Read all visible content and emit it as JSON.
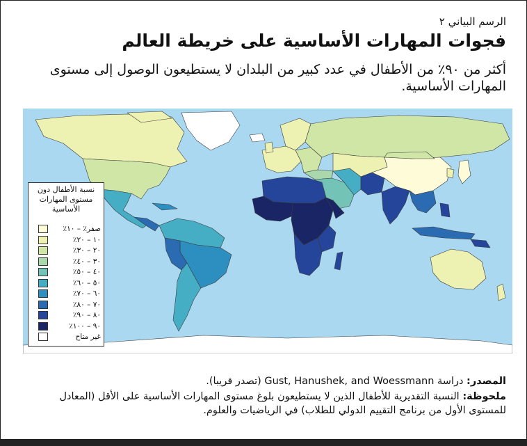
{
  "figure_label": "الرسم البياني ٢",
  "title": "فجوات المهارات الأساسية على خريطة العالم",
  "subtitle": "أكثر من ٩٠٪ من الأطفال في عدد كبير من البلدان لا يستطيعون الوصول إلى مستوى المهارات الأساسية.",
  "legend": {
    "title": "نسبة الأطفال دون مستوى المهارات الأساسية",
    "items": [
      {
        "label": "صفر٪ – ١٠٪",
        "color": "#fefbd9"
      },
      {
        "label": "١٠ – ٢٠٪",
        "color": "#edf2b3"
      },
      {
        "label": "٢٠ – ٣٠٪",
        "color": "#cfe6a6"
      },
      {
        "label": "٣٠ – ٤٠٪",
        "color": "#a9d8ad"
      },
      {
        "label": "٤٠ – ٥٠٪",
        "color": "#73c3b7"
      },
      {
        "label": "٥٠ – ٦٠٪",
        "color": "#45aec4"
      },
      {
        "label": "٦٠ – ٧٠٪",
        "color": "#2d8fc0"
      },
      {
        "label": "٧٠ – ٨٠٪",
        "color": "#2a6bb1"
      },
      {
        "label": "٨٠ – ٩٠٪",
        "color": "#24459a"
      },
      {
        "label": "٩٠ – ١٠٠٪",
        "color": "#1a2566"
      },
      {
        "label": "غير متاح",
        "color": "#ffffff"
      }
    ]
  },
  "source": {
    "label": "المصدر:",
    "text": "دراسة Gust, Hanushek, and Woessmann (تصدر قريبا)."
  },
  "note": {
    "label": "ملحوظة:",
    "text": "النسبة التقديرية للأطفال الذين لا يستطيعون بلوغ مستوى المهارات الأساسية على الأقل (المعادل للمستوى الأول من برنامج التقييم الدولي للطلاب) في الرياضيات والعلوم."
  },
  "colors": {
    "ocean": "#a9d8f0",
    "border": "#222222"
  }
}
